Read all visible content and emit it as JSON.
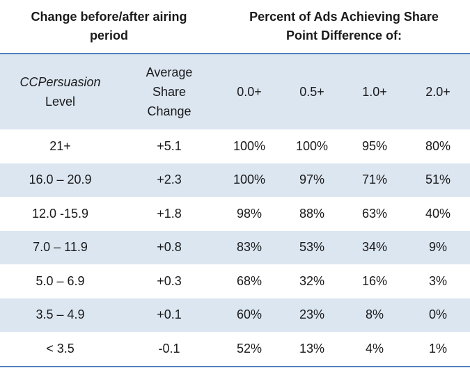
{
  "header": {
    "left_title": "Change before/after airing period",
    "right_title": "Percent of Ads Achieving Share Point Difference of:"
  },
  "columns": {
    "level_italic": "CCPersuasion",
    "level_plain": "Level",
    "avg_change": "Average Share Change",
    "t0": "0.0+",
    "t05": "0.5+",
    "t1": "1.0+",
    "t2": "2.0+"
  },
  "rows": [
    {
      "level": "21+",
      "avg": "+5.1",
      "p0": "100%",
      "p05": "100%",
      "p1": "95%",
      "p2": "80%"
    },
    {
      "level": "16.0 – 20.9",
      "avg": "+2.3",
      "p0": "100%",
      "p05": "97%",
      "p1": "71%",
      "p2": "51%"
    },
    {
      "level": "12.0 -15.9",
      "avg": "+1.8",
      "p0": "98%",
      "p05": "88%",
      "p1": "63%",
      "p2": "40%"
    },
    {
      "level": "7.0 – 11.9",
      "avg": "+0.8",
      "p0": "83%",
      "p05": "53%",
      "p1": "34%",
      "p2": "9%"
    },
    {
      "level": "5.0 – 6.9",
      "avg": "+0.3",
      "p0": "68%",
      "p05": "32%",
      "p1": "16%",
      "p2": "3%"
    },
    {
      "level": "3.5 – 4.9",
      "avg": "+0.1",
      "p0": "60%",
      "p05": "23%",
      "p1": "8%",
      "p2": "0%"
    },
    {
      "level": "< 3.5",
      "avg": "-0.1",
      "p0": "52%",
      "p05": "13%",
      "p1": "4%",
      "p2": "1%"
    }
  ],
  "colors": {
    "band": "#dce6f1",
    "rule": "#4f81bd"
  }
}
